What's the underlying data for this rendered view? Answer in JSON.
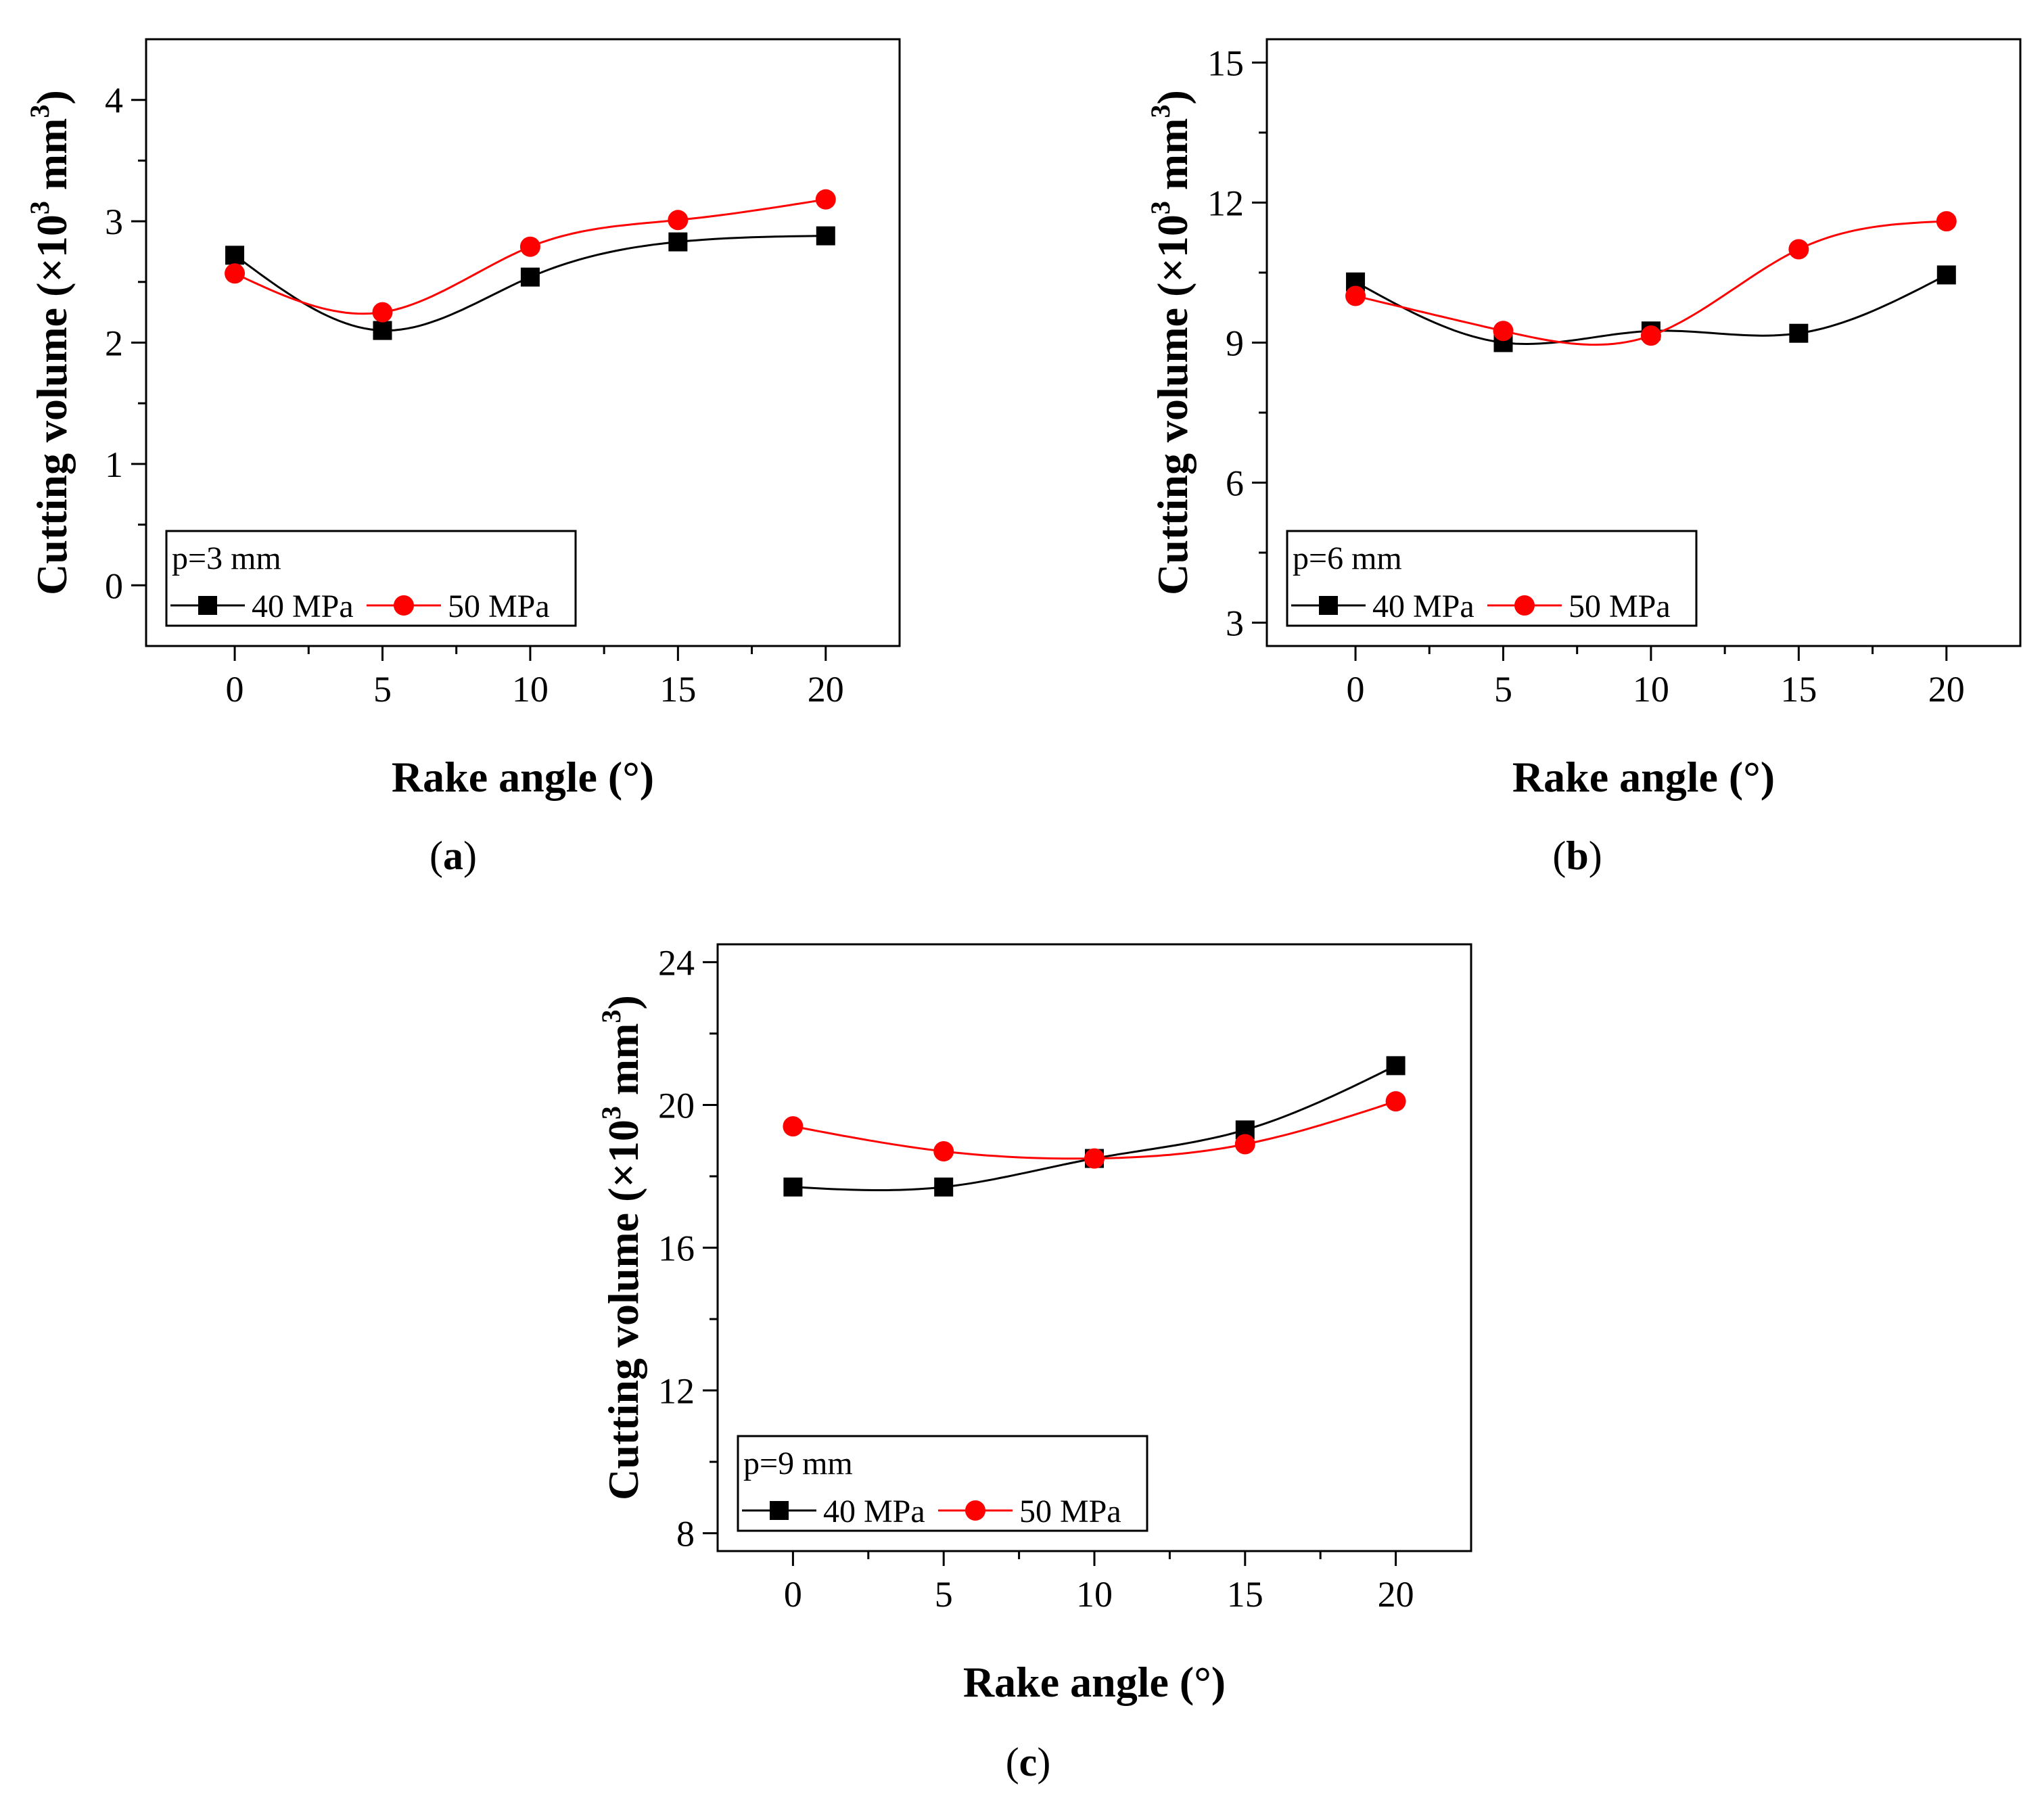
{
  "chart_data": [
    {
      "type": "line",
      "panel_label": "a",
      "xlabel": "Rake angle (°)",
      "ylabel": {
        "main": "Cutting volume (×10",
        "sup1": "3",
        "mid": " mm",
        "sup2": "3",
        "end": ")"
      },
      "xlim": [
        -3,
        22.5
      ],
      "ylim": [
        -0.5,
        4.5
      ],
      "xticks": [
        0,
        5,
        10,
        15,
        20
      ],
      "yticks": [
        0,
        1,
        2,
        3,
        4
      ],
      "yminor": 0.5,
      "legend_title": "p=3 mm",
      "legend_position": "bottom-left",
      "x": [
        0,
        5,
        10,
        15,
        20
      ],
      "series": [
        {
          "name": "40 MPa",
          "marker": "square",
          "color": "#000000",
          "values": [
            2.72,
            2.1,
            2.54,
            2.83,
            2.88
          ]
        },
        {
          "name": "50 MPa",
          "marker": "circle",
          "color": "#ff0000",
          "values": [
            2.57,
            2.25,
            2.79,
            3.01,
            3.18
          ]
        }
      ]
    },
    {
      "type": "line",
      "panel_label": "b",
      "xlabel": "Rake angle (°)",
      "ylabel": {
        "main": "Cutting volume (×10",
        "sup1": "3",
        "mid": " mm",
        "sup2": "3",
        "end": ")"
      },
      "xlim": [
        -3,
        22.5
      ],
      "ylim": [
        2.5,
        15.5
      ],
      "xticks": [
        0,
        5,
        10,
        15,
        20
      ],
      "yticks": [
        3,
        6,
        9,
        12,
        15
      ],
      "yminor": 1.5,
      "legend_title": "p=6 mm",
      "legend_position": "bottom-left",
      "x": [
        0,
        5,
        10,
        15,
        20
      ],
      "series": [
        {
          "name": "40 MPa",
          "marker": "square",
          "color": "#000000",
          "values": [
            10.3,
            9.0,
            9.25,
            9.2,
            10.45
          ]
        },
        {
          "name": "50 MPa",
          "marker": "circle",
          "color": "#ff0000",
          "values": [
            10.0,
            9.25,
            9.15,
            11.0,
            11.6
          ]
        }
      ]
    },
    {
      "type": "line",
      "panel_label": "c",
      "xlabel": "Rake angle (°)",
      "ylabel": {
        "main": "Cutting volume (×10",
        "sup1": "3",
        "mid": " mm",
        "sup2": "3",
        "end": ")"
      },
      "xlim": [
        -2.5,
        22.5
      ],
      "ylim": [
        7.5,
        24.5
      ],
      "xticks": [
        0,
        5,
        10,
        15,
        20
      ],
      "yticks": [
        8,
        12,
        16,
        20,
        24
      ],
      "yminor": 2,
      "legend_title": "p=9 mm",
      "legend_position": "bottom-left",
      "x": [
        0,
        5,
        10,
        15,
        20
      ],
      "series": [
        {
          "name": "40 MPa",
          "marker": "square",
          "color": "#000000",
          "values": [
            17.7,
            17.7,
            18.5,
            19.3,
            21.1
          ]
        },
        {
          "name": "50 MPa",
          "marker": "circle",
          "color": "#ff0000",
          "values": [
            19.4,
            18.7,
            18.5,
            18.9,
            20.1
          ]
        }
      ]
    }
  ]
}
